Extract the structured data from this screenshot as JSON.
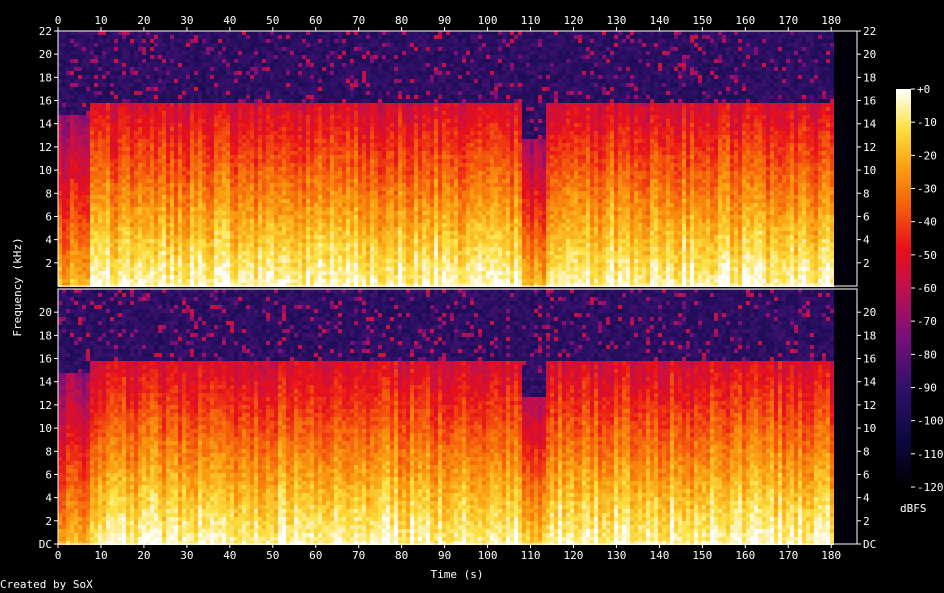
{
  "chart_data": {
    "type": "heatmap",
    "title": "",
    "xlabel": "Time (s)",
    "ylabel": "Frequency (kHz)",
    "xlim": [
      0,
      186
    ],
    "ylim": [
      0,
      22
    ],
    "x_ticks": [
      "0",
      "10",
      "20",
      "30",
      "40",
      "50",
      "60",
      "70",
      "80",
      "90",
      "100",
      "110",
      "120",
      "130",
      "140",
      "150",
      "160",
      "170",
      "180"
    ],
    "y_ticks_upper": [
      "2",
      "4",
      "6",
      "8",
      "10",
      "12",
      "14",
      "16",
      "18",
      "20",
      "22"
    ],
    "y_ticks_lower": [
      "DC",
      "2",
      "4",
      "6",
      "8",
      "10",
      "12",
      "14",
      "16",
      "18",
      "20"
    ],
    "channels": 2,
    "colorbar": {
      "label": "dBFS",
      "ticks": [
        "+0",
        "-10",
        "-20",
        "-30",
        "-40",
        "-50",
        "-60",
        "-70",
        "-80",
        "-90",
        "-100",
        "-110",
        "-120"
      ],
      "range": [
        -120,
        0
      ]
    },
    "segments": [
      {
        "start": 0,
        "end": 7,
        "cutoff_khz": 15
      },
      {
        "start": 7,
        "end": 43,
        "cutoff_khz": 16
      },
      {
        "start": 43,
        "end": 75,
        "cutoff_khz": 16
      },
      {
        "start": 75,
        "end": 108,
        "cutoff_khz": 16
      },
      {
        "start": 108,
        "end": 113,
        "cutoff_khz": 13
      },
      {
        "start": 113,
        "end": 180,
        "cutoff_khz": 16
      }
    ]
  },
  "footer": {
    "credit": "Created by SoX"
  },
  "colors": {
    "background": "#000000",
    "text": "#ffffff",
    "axis": "#ffffff"
  }
}
